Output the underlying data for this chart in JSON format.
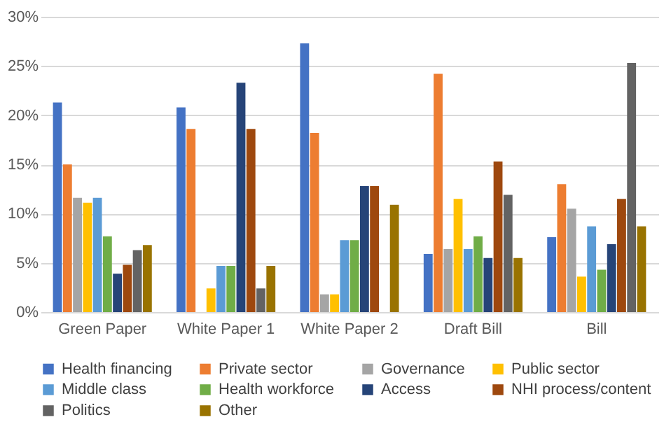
{
  "chart_data": {
    "type": "bar",
    "categories": [
      "Green Paper",
      "White Paper 1",
      "White Paper 2",
      "Draft Bill",
      "Bill"
    ],
    "series": [
      {
        "name": "Health financing",
        "color": "#4472c4",
        "values": [
          21.3,
          20.8,
          27.3,
          5.9,
          7.6
        ]
      },
      {
        "name": "Private sector",
        "color": "#ed7d31",
        "values": [
          15.0,
          18.6,
          18.2,
          24.2,
          13.0
        ]
      },
      {
        "name": "Governance",
        "color": "#a5a5a5",
        "values": [
          11.6,
          0,
          1.8,
          6.4,
          10.5
        ]
      },
      {
        "name": "Public sector",
        "color": "#ffc000",
        "values": [
          11.1,
          2.4,
          1.8,
          11.5,
          3.6
        ]
      },
      {
        "name": "Middle class",
        "color": "#5b9bd5",
        "values": [
          11.6,
          4.7,
          7.3,
          6.4,
          8.7
        ]
      },
      {
        "name": "Health workforce",
        "color": "#70ad47",
        "values": [
          7.7,
          4.7,
          7.3,
          7.7,
          4.3
        ]
      },
      {
        "name": "Access",
        "color": "#264478",
        "values": [
          3.9,
          23.3,
          12.8,
          5.5,
          6.9
        ]
      },
      {
        "name": "NHI process/content",
        "color": "#9e480e",
        "values": [
          4.8,
          18.6,
          12.8,
          15.3,
          11.5
        ]
      },
      {
        "name": "Politics",
        "color": "#636363",
        "values": [
          6.3,
          2.4,
          0,
          11.9,
          25.3
        ]
      },
      {
        "name": "Other",
        "color": "#997300",
        "values": [
          6.8,
          4.7,
          10.9,
          5.5,
          8.7
        ]
      }
    ],
    "ylim": [
      0,
      30
    ],
    "yticks": [
      {
        "value": 0,
        "label": "0%"
      },
      {
        "value": 5,
        "label": "5%"
      },
      {
        "value": 10,
        "label": "10%"
      },
      {
        "value": 15,
        "label": "15%"
      },
      {
        "value": 20,
        "label": "20%"
      },
      {
        "value": 25,
        "label": "25%"
      },
      {
        "value": 30,
        "label": "30%"
      }
    ],
    "grid": "y",
    "legend": "bottom"
  }
}
